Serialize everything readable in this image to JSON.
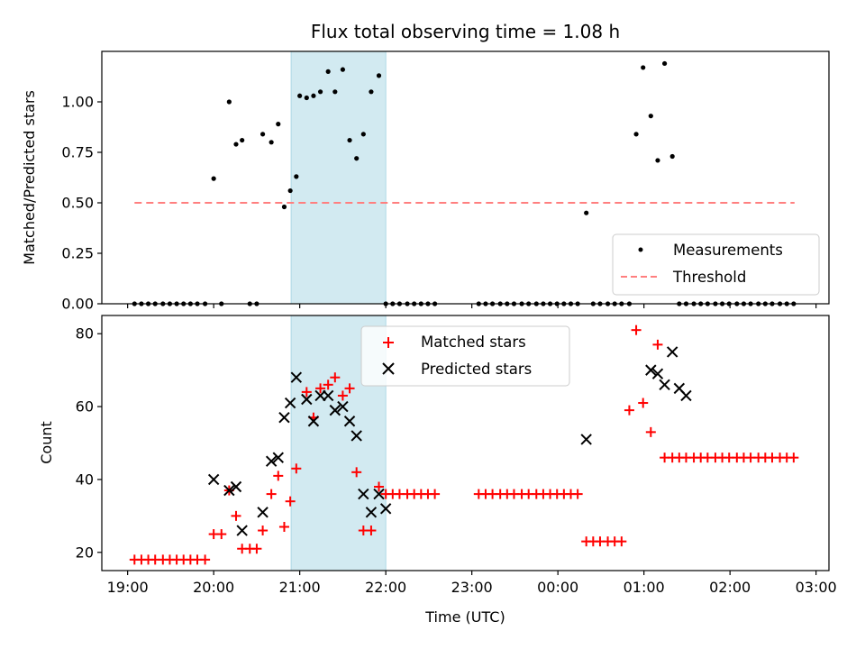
{
  "chart_data": [
    {
      "type": "scatter",
      "title": "Flux total observing time = 1.08 h",
      "ylabel": "Matched/Predicted stars",
      "xlabel": "",
      "xlim": [
        -0.3,
        8.15
      ],
      "ylim": [
        0,
        1.25
      ],
      "yticks": [
        0,
        0.25,
        0.5,
        0.75,
        1.0
      ],
      "ytick_labels": [
        "0.00",
        "0.25",
        "0.50",
        "0.75",
        "1.00"
      ],
      "xticks": [
        0,
        1,
        2,
        3,
        4,
        5,
        6,
        7,
        8
      ],
      "grid": false,
      "legend_position": "lower-right",
      "highlight_span": {
        "x0": 1.9,
        "x1": 3.0,
        "color": "#add8e6"
      },
      "threshold": {
        "name": "Threshold",
        "y": 0.5,
        "x0": 0.08,
        "x1": 7.75,
        "color": "#ff7f7f"
      },
      "series": [
        {
          "name": "Measurements",
          "color": "#000000",
          "x": [
            0.08,
            0.16,
            0.24,
            0.32,
            0.41,
            0.49,
            0.57,
            0.65,
            0.73,
            0.81,
            0.9,
            1.0,
            1.09,
            1.18,
            1.26,
            1.33,
            1.42,
            1.5,
            1.57,
            1.67,
            1.75,
            1.82,
            1.89,
            1.96,
            2.0,
            2.08,
            2.16,
            2.24,
            2.33,
            2.41,
            2.5,
            2.58,
            2.66,
            2.74,
            2.83,
            2.92,
            3.0,
            3.08,
            3.16,
            3.25,
            3.33,
            3.41,
            3.49,
            3.57,
            4.08,
            4.16,
            4.24,
            4.33,
            4.41,
            4.49,
            4.58,
            4.66,
            4.75,
            4.83,
            4.91,
            4.99,
            5.07,
            5.15,
            5.23,
            5.33,
            5.41,
            5.49,
            5.58,
            5.66,
            5.74,
            5.83,
            5.91,
            5.99,
            6.08,
            6.16,
            6.24,
            6.33,
            6.41,
            6.49,
            6.58,
            6.66,
            6.74,
            6.83,
            6.91,
            6.99,
            7.08,
            7.16,
            7.24,
            7.33,
            7.41,
            7.49,
            7.58,
            7.66,
            7.74
          ],
          "y": [
            0,
            0,
            0,
            0,
            0,
            0,
            0,
            0,
            0,
            0,
            0,
            0.62,
            0,
            1.0,
            0.79,
            0.81,
            0,
            0,
            0.84,
            0.8,
            0.89,
            0.48,
            0.56,
            0.63,
            1.03,
            1.02,
            1.03,
            1.05,
            1.15,
            1.05,
            1.16,
            0.81,
            0.72,
            0.84,
            1.05,
            1.13,
            0,
            0,
            0,
            0,
            0,
            0,
            0,
            0,
            0,
            0,
            0,
            0,
            0,
            0,
            0,
            0,
            0,
            0,
            0,
            0,
            0,
            0,
            0,
            0.45,
            0,
            0,
            0,
            0,
            0,
            0,
            0.84,
            1.17,
            0.93,
            0.71,
            1.19,
            0.73,
            0,
            0,
            0,
            0,
            0,
            0,
            0,
            0,
            0,
            0,
            0,
            0,
            0,
            0,
            0,
            0,
            0
          ]
        }
      ]
    },
    {
      "type": "scatter",
      "title": "",
      "ylabel": "Count",
      "xlabel": "Time (UTC)",
      "xlim": [
        -0.3,
        8.15
      ],
      "ylim": [
        15,
        85
      ],
      "yticks": [
        20,
        40,
        60,
        80
      ],
      "xticks": [
        0,
        1,
        2,
        3,
        4,
        5,
        6,
        7,
        8
      ],
      "xtick_labels": [
        "19:00",
        "20:00",
        "21:00",
        "22:00",
        "23:00",
        "00:00",
        "01:00",
        "02:00",
        "03:00"
      ],
      "grid": false,
      "legend_position": "upper-center",
      "highlight_span": {
        "x0": 1.9,
        "x1": 3.0,
        "color": "#add8e6"
      },
      "series": [
        {
          "name": "Matched stars",
          "color": "#ff0000",
          "marker": "+",
          "x": [
            0.08,
            0.16,
            0.24,
            0.32,
            0.41,
            0.49,
            0.57,
            0.65,
            0.73,
            0.81,
            0.9,
            1.0,
            1.09,
            1.18,
            1.26,
            1.33,
            1.42,
            1.5,
            1.57,
            1.67,
            1.75,
            1.82,
            1.89,
            1.96,
            2.08,
            2.16,
            2.24,
            2.33,
            2.41,
            2.5,
            2.58,
            2.66,
            2.74,
            2.83,
            2.92,
            3.0,
            3.08,
            3.16,
            3.25,
            3.33,
            3.41,
            3.49,
            3.57,
            4.08,
            4.16,
            4.24,
            4.33,
            4.41,
            4.49,
            4.58,
            4.66,
            4.75,
            4.83,
            4.91,
            4.99,
            5.07,
            5.15,
            5.23,
            5.33,
            5.41,
            5.49,
            5.58,
            5.66,
            5.74,
            5.83,
            5.91,
            5.99,
            6.08,
            6.16,
            6.24,
            6.33,
            6.41,
            6.49,
            6.58,
            6.66,
            6.74,
            6.83,
            6.91,
            6.99,
            7.08,
            7.16,
            7.24,
            7.33,
            7.41,
            7.49,
            7.58,
            7.66,
            7.74
          ],
          "y": [
            18,
            18,
            18,
            18,
            18,
            18,
            18,
            18,
            18,
            18,
            18,
            25,
            25,
            37,
            30,
            21,
            21,
            21,
            26,
            36,
            41,
            27,
            34,
            43,
            64,
            57,
            65,
            66,
            68,
            63,
            65,
            42,
            26,
            26,
            38,
            36,
            36,
            36,
            36,
            36,
            36,
            36,
            36,
            36,
            36,
            36,
            36,
            36,
            36,
            36,
            36,
            36,
            36,
            36,
            36,
            36,
            36,
            36,
            23,
            23,
            23,
            23,
            23,
            23,
            59,
            81,
            61,
            53,
            77,
            46,
            46,
            46,
            46,
            46,
            46,
            46,
            46,
            46,
            46,
            46,
            46,
            46,
            46,
            46,
            46,
            46,
            46,
            46
          ]
        },
        {
          "name": "Predicted stars",
          "color": "#000000",
          "marker": "x",
          "x": [
            1.0,
            1.18,
            1.26,
            1.33,
            1.57,
            1.67,
            1.75,
            1.82,
            1.89,
            1.96,
            2.08,
            2.16,
            2.24,
            2.33,
            2.41,
            2.5,
            2.58,
            2.66,
            2.74,
            2.83,
            2.92,
            3.0,
            5.33,
            6.08,
            6.16,
            6.24,
            6.33,
            6.41,
            6.49
          ],
          "y": [
            40,
            37,
            38,
            26,
            31,
            45,
            46,
            57,
            61,
            68,
            62,
            56,
            63,
            63,
            59,
            60,
            56,
            52,
            36,
            31,
            36,
            32,
            51,
            70,
            69,
            66,
            75,
            65,
            63
          ]
        }
      ]
    }
  ]
}
